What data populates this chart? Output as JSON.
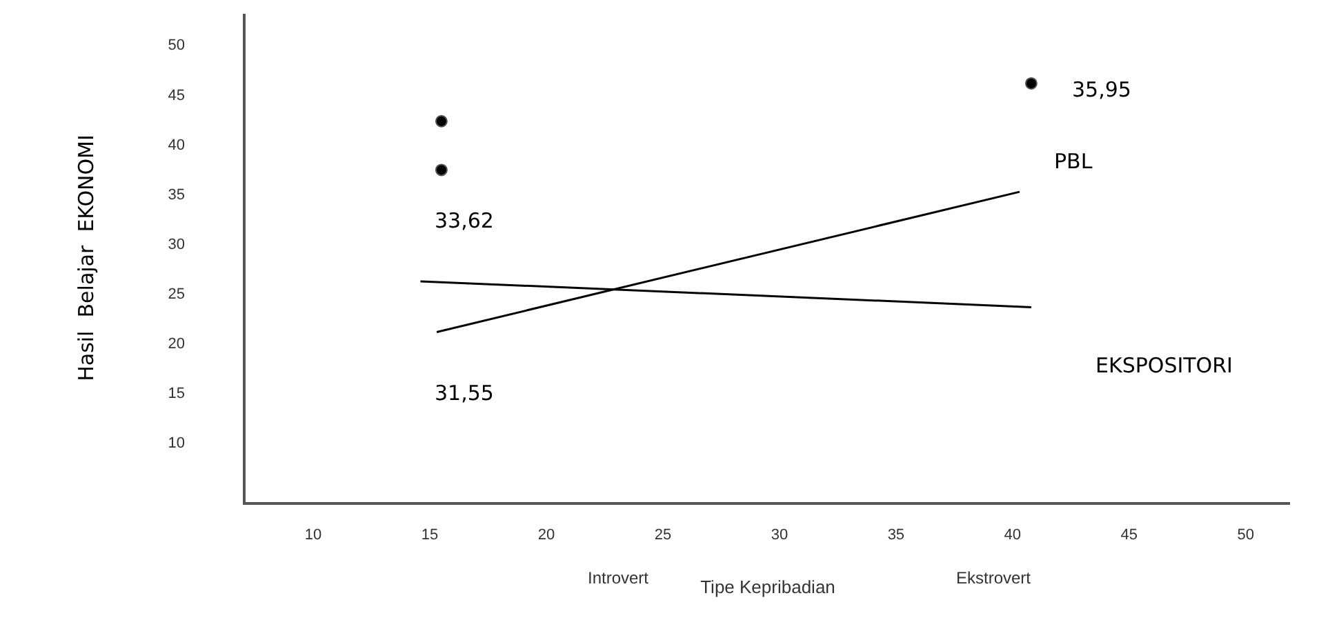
{
  "chart_data": {
    "type": "line",
    "xlabel": "Tipe Kepribadian",
    "ylabel": "Hasil  Belajar  EKONOMI",
    "xlim": [
      7.1,
      51.9
    ],
    "ylim": [
      4.0,
      53.1
    ],
    "xticks": [
      10,
      15,
      20,
      25,
      30,
      35,
      40,
      45,
      50
    ],
    "yticks": [
      10,
      15,
      20,
      25,
      30,
      35,
      40,
      45,
      50
    ],
    "grid": false,
    "legend": false,
    "series": [
      {
        "name": "PBL",
        "color": "#000000",
        "x": [
          15.3,
          40.3
        ],
        "values": [
          21.1,
          35.2
        ]
      },
      {
        "name": "EKSPOSITORI",
        "color": "#000000",
        "x": [
          14.6,
          40.8
        ],
        "values": [
          26.2,
          23.6
        ]
      },
      {
        "type": "scatter",
        "color": "#000000",
        "marker": "circle",
        "x": [
          15.5,
          15.5,
          40.8
        ],
        "values": [
          42.3,
          37.4,
          46.1
        ]
      }
    ],
    "annotations": [
      "35,95",
      "33,62",
      "31,55",
      "Introvert",
      "Ekstrovert"
    ]
  }
}
